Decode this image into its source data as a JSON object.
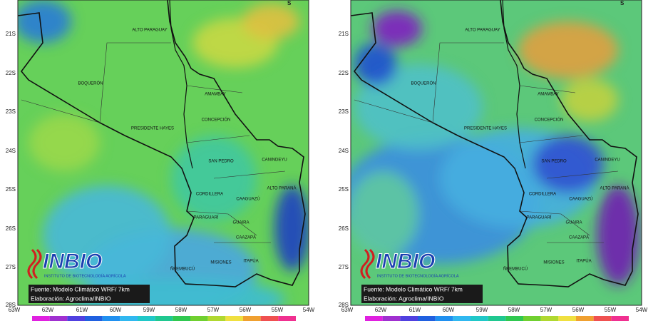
{
  "panels": [
    {
      "corner_label": "S",
      "lat_labels": [
        "21S",
        "22S",
        "23S",
        "24S",
        "25S",
        "26S",
        "27S",
        "28S"
      ],
      "lon_labels": [
        "63W",
        "62W",
        "61W",
        "60W",
        "59W",
        "58W",
        "57W",
        "56W",
        "55W",
        "54W"
      ],
      "departments": [
        "ALTO PARAGUAY",
        "BOQUERÓN",
        "PRESIDENTE HAYES",
        "AMAMBAY",
        "CONCEPCIÓN",
        "SAN PEDRO",
        "CANINDEYU",
        "CORDILLERA",
        "CAAGUAZÚ",
        "ALTO PARANÁ",
        "GUAIRA",
        "PARAGUARÍ",
        "CAAZAPÁ",
        "MISIONES",
        "ÑEEMBUCÚ",
        "ITAPÚA"
      ],
      "logo": {
        "name": "INBIO",
        "subtitle": "INSTITUTO DE BIOTECNOLOGÍA AGRÍCOLA"
      },
      "source": "Fuente: Modelo Climático WRF/ 7km",
      "credit": "Elaboración: Agroclima/INBIO"
    },
    {
      "corner_label": "S",
      "lat_labels": [
        "21S",
        "22S",
        "23S",
        "24S",
        "25S",
        "26S",
        "27S",
        "28S"
      ],
      "lon_labels": [
        "63W",
        "62W",
        "61W",
        "60W",
        "59W",
        "58W",
        "57W",
        "56W",
        "55W",
        "54W"
      ],
      "departments": [
        "ALTO PARAGUAY",
        "BOQUERÓN",
        "PRESIDENTE HAYES",
        "AMAMBAY",
        "CONCEPCIÓN",
        "SAN PEDRO",
        "CANINDEYU",
        "CORDILLERA",
        "CAAGUAZÚ",
        "ALTO PARANÁ",
        "GUAIRA",
        "PARAGUARÍ",
        "CAAZAPÁ",
        "MISIONES",
        "ÑEEMBUCÚ",
        "ITAPÚA"
      ],
      "logo": {
        "name": "INBIO",
        "subtitle": "INSTITUTO DE BIOTECNOLOGÍA AGRÍCOLA"
      },
      "source": "Fuente: Modelo Climático WRF/ 7km",
      "credit": "Elaboración: Agroclima/INBIO"
    }
  ]
}
